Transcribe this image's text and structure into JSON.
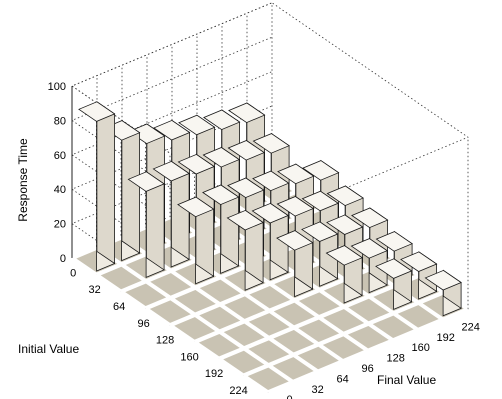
{
  "chart_data": {
    "type": "bar3d",
    "title": "",
    "xlabel": "Initial Value",
    "ylabel": "Final Value",
    "zlabel": "Response Time",
    "x_ticks": [
      "0",
      "32",
      "64",
      "96",
      "128",
      "160",
      "192",
      "224"
    ],
    "y_ticks": [
      "0",
      "32",
      "64",
      "96",
      "128",
      "160",
      "192",
      "224"
    ],
    "z_ticks": [
      "0",
      "20",
      "40",
      "60",
      "80",
      "100"
    ],
    "zlim": [
      0,
      100
    ],
    "grid": true,
    "bars": [
      {
        "initial": "0",
        "final": "0",
        "value": 87
      },
      {
        "initial": "0",
        "final": "32",
        "value": 70
      },
      {
        "initial": "0",
        "final": "64",
        "value": 62
      },
      {
        "initial": "0",
        "final": "96",
        "value": 58
      },
      {
        "initial": "0",
        "final": "128",
        "value": 55
      },
      {
        "initial": "0",
        "final": "160",
        "value": 52
      },
      {
        "initial": "0",
        "final": "192",
        "value": 50
      },
      {
        "initial": "32",
        "final": "32",
        "value": 50
      },
      {
        "initial": "32",
        "final": "64",
        "value": 50
      },
      {
        "initial": "32",
        "final": "96",
        "value": 48
      },
      {
        "initial": "32",
        "final": "128",
        "value": 46
      },
      {
        "initial": "32",
        "final": "160",
        "value": 44
      },
      {
        "initial": "32",
        "final": "192",
        "value": 42
      },
      {
        "initial": "64",
        "final": "64",
        "value": 39
      },
      {
        "initial": "64",
        "final": "96",
        "value": 40
      },
      {
        "initial": "64",
        "final": "128",
        "value": 38
      },
      {
        "initial": "64",
        "final": "160",
        "value": 36
      },
      {
        "initial": "64",
        "final": "192",
        "value": 34
      },
      {
        "initial": "64",
        "final": "224",
        "value": 30
      },
      {
        "initial": "96",
        "final": "96",
        "value": 35
      },
      {
        "initial": "96",
        "final": "128",
        "value": 33
      },
      {
        "initial": "96",
        "final": "160",
        "value": 31
      },
      {
        "initial": "96",
        "final": "192",
        "value": 28
      },
      {
        "initial": "96",
        "final": "224",
        "value": 25
      },
      {
        "initial": "128",
        "final": "128",
        "value": 27
      },
      {
        "initial": "128",
        "final": "160",
        "value": 26
      },
      {
        "initial": "128",
        "final": "192",
        "value": 24
      },
      {
        "initial": "128",
        "final": "224",
        "value": 22
      },
      {
        "initial": "160",
        "final": "160",
        "value": 22
      },
      {
        "initial": "160",
        "final": "192",
        "value": 20
      },
      {
        "initial": "160",
        "final": "224",
        "value": 18
      },
      {
        "initial": "192",
        "final": "192",
        "value": 18
      },
      {
        "initial": "192",
        "final": "224",
        "value": 16
      },
      {
        "initial": "224",
        "final": "224",
        "value": 15
      }
    ]
  }
}
